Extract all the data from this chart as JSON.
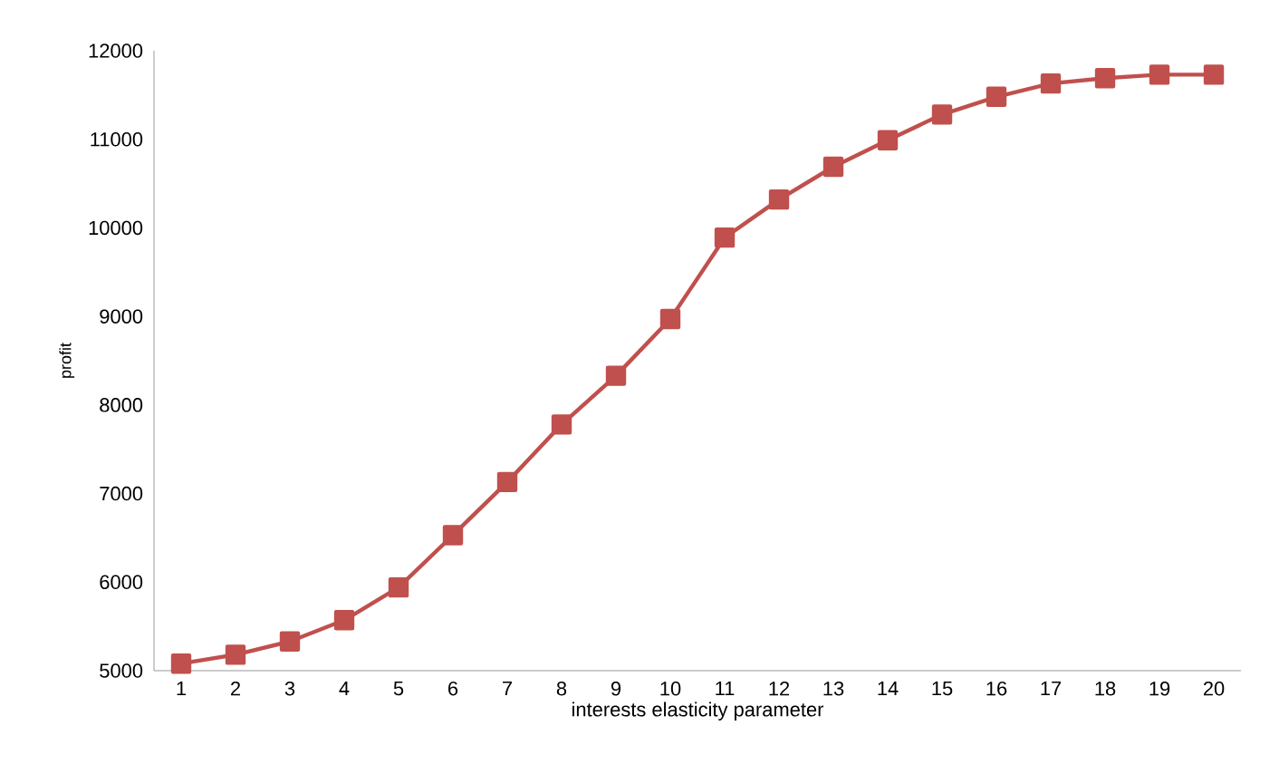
{
  "chart_data": {
    "type": "line",
    "xlabel": "interests elasticity parameter",
    "ylabel": "profit",
    "categories": [
      "1",
      "2",
      "3",
      "4",
      "5",
      "6",
      "7",
      "8",
      "9",
      "10",
      "11",
      "12",
      "13",
      "14",
      "15",
      "16",
      "17",
      "18",
      "19",
      "20"
    ],
    "series": [
      {
        "color": "#c0504d",
        "values": [
          5080,
          5180,
          5330,
          5570,
          5940,
          6530,
          7130,
          7780,
          8330,
          8970,
          9890,
          10320,
          10690,
          10990,
          11280,
          11480,
          11630,
          11690,
          11730,
          11730
        ]
      }
    ],
    "ylim": [
      5000,
      12000
    ],
    "yticks": [
      5000,
      6000,
      7000,
      8000,
      9000,
      10000,
      11000,
      12000
    ],
    "marker": "square",
    "line_style": "solid",
    "grid": false
  }
}
